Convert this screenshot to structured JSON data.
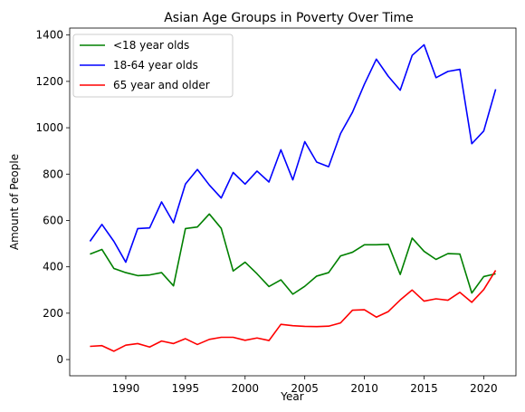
{
  "chart_data": {
    "type": "line",
    "title": "Asian Age Groups in Poverty Over Time",
    "xlabel": "Year",
    "ylabel": "Amount of People",
    "xlim": [
      1985.3,
      2022.7
    ],
    "ylim": [
      -70,
      1430
    ],
    "x_ticks": [
      1990,
      1995,
      2000,
      2005,
      2010,
      2015,
      2020
    ],
    "y_ticks": [
      0,
      200,
      400,
      600,
      800,
      1000,
      1200,
      1400
    ],
    "grid": false,
    "legend_position": "top-left",
    "x": [
      1987,
      1988,
      1989,
      1990,
      1991,
      1992,
      1993,
      1994,
      1995,
      1996,
      1997,
      1998,
      1999,
      2000,
      2001,
      2002,
      2003,
      2004,
      2005,
      2006,
      2007,
      2008,
      2009,
      2010,
      2011,
      2012,
      2013,
      2014,
      2015,
      2016,
      2017,
      2018,
      2019,
      2020,
      2021
    ],
    "series": [
      {
        "name": "<18 year olds",
        "color": "#008000",
        "values": [
          455,
          475,
          393,
          375,
          362,
          365,
          375,
          318,
          565,
          572,
          628,
          566,
          382,
          420,
          370,
          315,
          344,
          282,
          316,
          360,
          375,
          447,
          463,
          495,
          495,
          497,
          367,
          524,
          467,
          432,
          457,
          455,
          287,
          358,
          370
        ]
      },
      {
        "name": "18-64 year olds",
        "color": "#0000ff",
        "values": [
          510,
          583,
          510,
          420,
          565,
          568,
          680,
          590,
          757,
          820,
          753,
          697,
          807,
          757,
          813,
          766,
          905,
          775,
          940,
          852,
          832,
          975,
          1067,
          1188,
          1296,
          1222,
          1162,
          1312,
          1358,
          1216,
          1243,
          1252,
          931,
          986,
          1166
        ]
      },
      {
        "name": "65 year and older",
        "color": "#ff0000",
        "values": [
          57,
          60,
          36,
          62,
          69,
          54,
          80,
          69,
          90,
          65,
          87,
          96,
          96,
          83,
          93,
          82,
          152,
          146,
          143,
          142,
          144,
          158,
          213,
          215,
          183,
          207,
          257,
          300,
          252,
          262,
          256,
          290,
          247,
          302,
          385
        ]
      }
    ]
  }
}
